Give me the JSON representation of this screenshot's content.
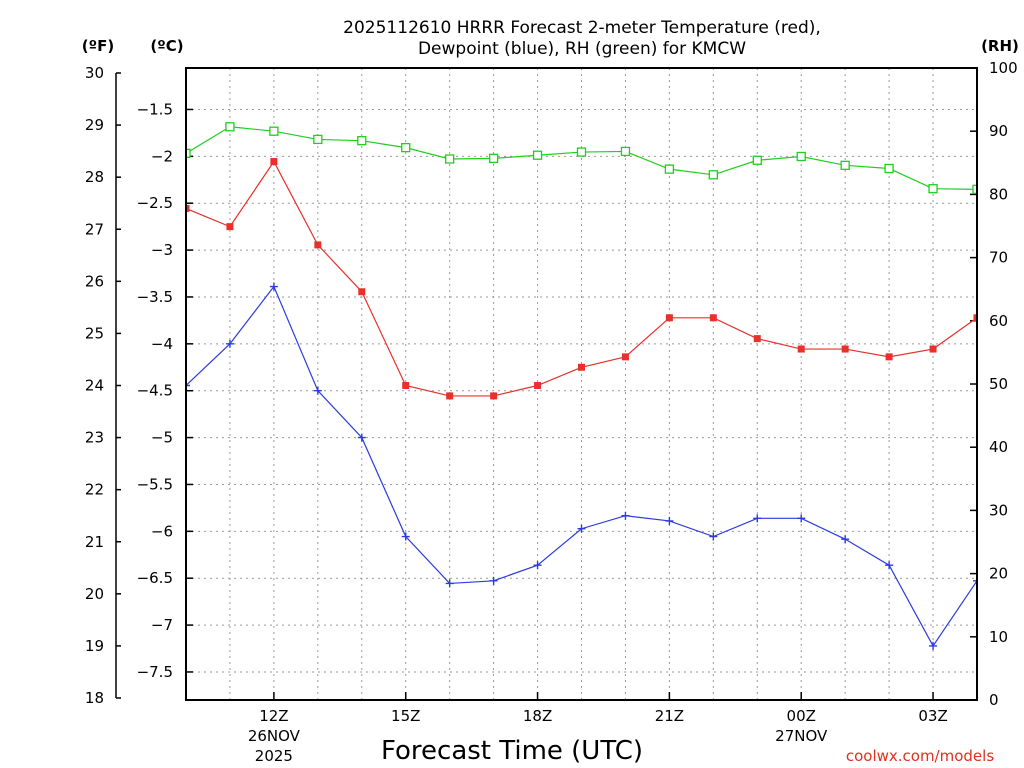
{
  "chart_data": {
    "type": "line",
    "title": "2025112610 HRRR Forecast 2-meter Temperature (red),",
    "subtitle": "Dewpoint (blue), RH (green) for KMCW",
    "xlabel": "Forecast Time (UTC)",
    "credit": "coolwx.com/models",
    "units": {
      "f": "(ºF)",
      "c": "(ºC)",
      "rh": "(RH)"
    },
    "x": [
      10,
      11,
      12,
      13,
      14,
      15,
      16,
      17,
      18,
      19,
      20,
      21,
      22,
      23,
      24,
      25,
      26,
      27,
      28
    ],
    "x_range": [
      10,
      28
    ],
    "x_ticks": [
      {
        "value": 12,
        "label": "12Z",
        "date": "26NOV",
        "year": "2025"
      },
      {
        "value": 15,
        "label": "15Z",
        "date": "",
        "year": ""
      },
      {
        "value": 18,
        "label": "18Z",
        "date": "",
        "year": ""
      },
      {
        "value": 21,
        "label": "21Z",
        "date": "",
        "year": ""
      },
      {
        "value": 24,
        "label": "00Z",
        "date": "27NOV",
        "year": ""
      },
      {
        "value": 27,
        "label": "03Z",
        "date": "",
        "year": ""
      }
    ],
    "f_axis": {
      "range": [
        18,
        30
      ],
      "ticks": [
        "18",
        "19",
        "20",
        "21",
        "22",
        "23",
        "24",
        "25",
        "26",
        "27",
        "28",
        "29",
        "30"
      ]
    },
    "c_axis": {
      "ticks": [
        "-7.5",
        "-7",
        "-6.5",
        "-6",
        "-5.5",
        "-5",
        "-4.5",
        "-4",
        "-3.5",
        "-3",
        "-2.5",
        "-2",
        "-1.5"
      ]
    },
    "rh_axis": {
      "range": [
        0,
        100
      ],
      "ticks": [
        "0",
        "10",
        "20",
        "30",
        "40",
        "50",
        "60",
        "70",
        "80",
        "90",
        "100"
      ]
    },
    "series": [
      {
        "name": "Temperature",
        "axis": "f",
        "color": "#e8302c",
        "marker": "filled-square",
        "values": [
          27.4,
          27.05,
          28.3,
          26.7,
          25.8,
          24.0,
          23.8,
          23.8,
          24.0,
          24.35,
          24.55,
          25.3,
          25.3,
          24.9,
          24.7,
          24.7,
          24.55,
          24.7,
          25.3
        ]
      },
      {
        "name": "Dewpoint",
        "axis": "f",
        "color": "#2b3be0",
        "marker": "plus",
        "values": [
          24.0,
          24.8,
          25.9,
          23.9,
          23.0,
          21.1,
          20.2,
          20.25,
          20.55,
          21.25,
          21.5,
          21.4,
          21.1,
          21.45,
          21.45,
          21.05,
          20.55,
          19.0,
          20.25
        ]
      },
      {
        "name": "RH",
        "axis": "rh",
        "color": "#1ecf1e",
        "marker": "open-square",
        "values": [
          86.5,
          90.7,
          90.0,
          88.7,
          88.5,
          87.4,
          85.6,
          85.7,
          86.2,
          86.7,
          86.8,
          84.0,
          83.1,
          85.4,
          86.0,
          84.6,
          84.1,
          80.9,
          80.8
        ]
      }
    ]
  }
}
